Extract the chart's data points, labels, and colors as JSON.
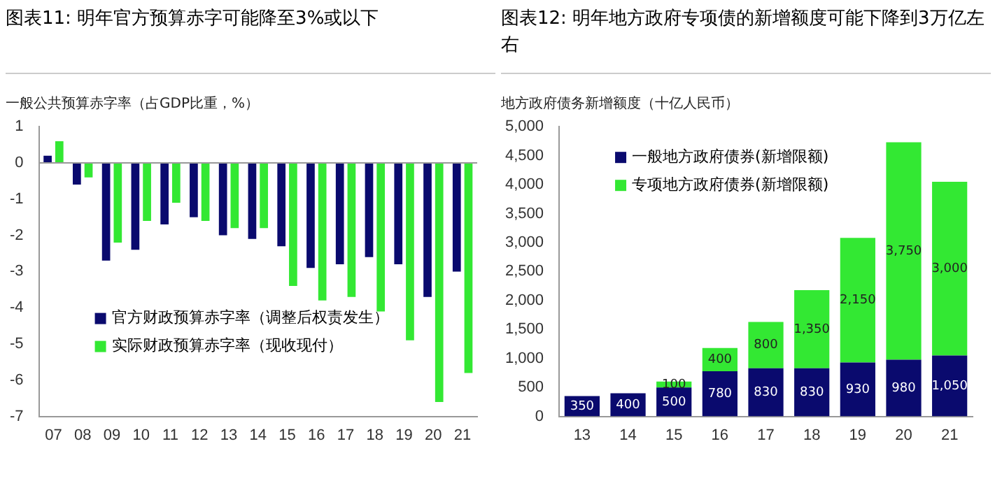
{
  "chart_data": [
    {
      "type": "bar",
      "title": "图表11: 明年官方预算赤字可能降至3%或以下",
      "ylabel": "一般公共预算赤字率（占GDP比重，%）",
      "categories": [
        "07",
        "08",
        "09",
        "10",
        "11",
        "12",
        "13",
        "14",
        "15",
        "16",
        "17",
        "18",
        "19",
        "20",
        "21"
      ],
      "series": [
        {
          "name": "官方财政预算赤字率（调整后权责发生）",
          "color": "#0a0a6e",
          "values": [
            0.2,
            -0.6,
            -2.7,
            -2.4,
            -1.7,
            -1.5,
            -2.0,
            -2.1,
            -2.3,
            -2.9,
            -2.8,
            -2.6,
            -2.8,
            -3.7,
            -3.0
          ]
        },
        {
          "name": "实际财政预算赤字率（现收现付）",
          "color": "#33e833",
          "values": [
            0.6,
            -0.4,
            -2.2,
            -1.6,
            -1.1,
            -1.6,
            -1.8,
            -1.8,
            -3.4,
            -3.8,
            -3.7,
            -4.1,
            -4.9,
            -6.6,
            -5.8
          ]
        }
      ],
      "ylim": [
        -7,
        1
      ],
      "yticks": [
        -7,
        -6,
        -5,
        -4,
        -3,
        -2,
        -1,
        0,
        1
      ],
      "ref_lines": [
        {
          "axis": "y",
          "value": 0,
          "color": "#999999"
        }
      ],
      "grid": false,
      "legend": "bottom left"
    },
    {
      "type": "bar",
      "title": "图表12: 明年地方政府专项债的新增额度可能下降到3万亿左右",
      "ylabel": "地方政府债务新增额度（十亿人民币）",
      "categories": [
        "13",
        "14",
        "15",
        "16",
        "17",
        "18",
        "19",
        "20",
        "21"
      ],
      "stacked": true,
      "series": [
        {
          "name": "一般地方政府债券(新增限额)",
          "color": "#0a0a6e",
          "values": [
            350,
            400,
            500,
            780,
            830,
            830,
            930,
            980,
            1050
          ],
          "value_labels": [
            "350",
            "400",
            "500",
            "780",
            "830",
            "830",
            "930",
            "980",
            "1,050"
          ]
        },
        {
          "name": "专项地方政府债券(新增限额)",
          "color": "#33e833",
          "values": [
            null,
            null,
            100,
            400,
            800,
            1350,
            2150,
            3750,
            3000
          ],
          "value_labels": [
            null,
            null,
            "100",
            "400",
            "800",
            "1,350",
            "2,150",
            "3,750",
            "3,000"
          ]
        }
      ],
      "ylim": [
        0,
        5000
      ],
      "yticks": [
        0,
        500,
        {
          "value": 1000,
          "label": "1,000"
        },
        {
          "value": 1500,
          "label": "1,500"
        },
        {
          "value": 2000,
          "label": "2,000"
        },
        {
          "value": 2500,
          "label": "2,500"
        },
        {
          "value": 3000,
          "label": "3,000"
        },
        {
          "value": 3500,
          "label": "3,500"
        },
        {
          "value": 4000,
          "label": "4,000"
        },
        {
          "value": 4500,
          "label": "4,500"
        },
        {
          "value": 5000,
          "label": "5,000"
        }
      ],
      "grid": false,
      "legend": "top left"
    }
  ]
}
